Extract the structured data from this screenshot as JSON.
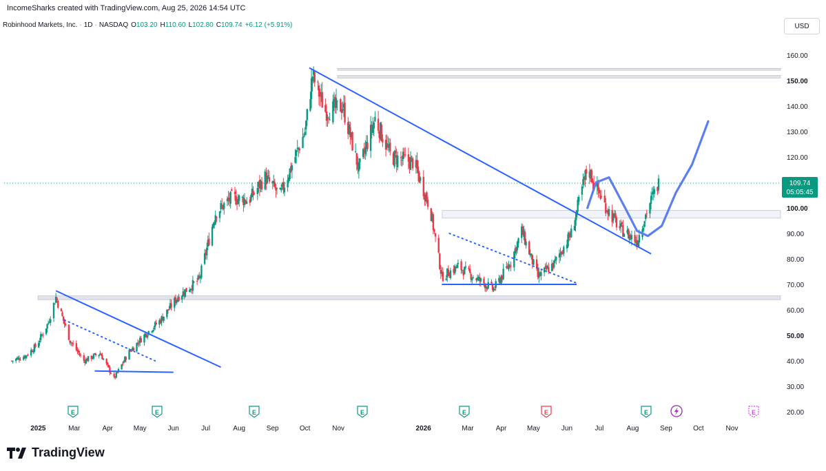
{
  "header": {
    "attribution": "IncomeSharks created with TradingView.com, Aug 25, 2026 14:54 UTC"
  },
  "symbol": {
    "name": "Robinhood Markets, Inc.",
    "interval": "1D",
    "exchange": "NASDAQ",
    "open_label": "O",
    "open": "103.20",
    "high_label": "H",
    "high": "110.60",
    "low_label": "L",
    "low": "102.80",
    "close_label": "C",
    "close": "109.74",
    "change": "+6.12 (+5.91%)"
  },
  "currency_button": "USD",
  "price_tag": {
    "price": "109.74",
    "countdown": "05:05:45"
  },
  "brand": "TradingView",
  "colors": {
    "up": "#089981",
    "down": "#f23645",
    "trendline": "#2962ff",
    "zone": "#d1d4dc",
    "projection": "#5b7ef0"
  },
  "chart_data": {
    "type": "candlestick",
    "y_axis": {
      "ticks": [
        "160.00",
        "150.00",
        "140.00",
        "130.00",
        "120.00",
        "110.00",
        "100.00",
        "90.00",
        "80.00",
        "70.00",
        "60.00",
        "50.00",
        "40.00",
        "30.00",
        "20.00"
      ],
      "range": [
        15,
        165
      ]
    },
    "x_axis": {
      "ticks": [
        "2025",
        "Mar",
        "Apr",
        "May",
        "Jun",
        "Jul",
        "Aug",
        "Sep",
        "Oct",
        "Nov",
        "2026",
        "Mar",
        "Apr",
        "May",
        "Jun",
        "Jul",
        "Aug",
        "Sep",
        "Oct",
        "Nov"
      ]
    },
    "approx_close_path": [
      {
        "date": "2025-01-02",
        "close": 40
      },
      {
        "date": "2025-01-15",
        "close": 42
      },
      {
        "date": "2025-01-25",
        "close": 46
      },
      {
        "date": "2025-02-05",
        "close": 55
      },
      {
        "date": "2025-02-12",
        "close": 65
      },
      {
        "date": "2025-02-25",
        "close": 48
      },
      {
        "date": "2025-03-10",
        "close": 40
      },
      {
        "date": "2025-03-25",
        "close": 43
      },
      {
        "date": "2025-04-07",
        "close": 33
      },
      {
        "date": "2025-04-20",
        "close": 43
      },
      {
        "date": "2025-05-05",
        "close": 50
      },
      {
        "date": "2025-05-20",
        "close": 56
      },
      {
        "date": "2025-06-05",
        "close": 65
      },
      {
        "date": "2025-06-25",
        "close": 72
      },
      {
        "date": "2025-07-10",
        "close": 98
      },
      {
        "date": "2025-07-25",
        "close": 104
      },
      {
        "date": "2025-08-10",
        "close": 103
      },
      {
        "date": "2025-08-25",
        "close": 112
      },
      {
        "date": "2025-09-08",
        "close": 105
      },
      {
        "date": "2025-09-20",
        "close": 118
      },
      {
        "date": "2025-10-01",
        "close": 130
      },
      {
        "date": "2025-10-08",
        "close": 152
      },
      {
        "date": "2025-10-20",
        "close": 138
      },
      {
        "date": "2025-11-05",
        "close": 140
      },
      {
        "date": "2025-11-20",
        "close": 115
      },
      {
        "date": "2025-12-05",
        "close": 135
      },
      {
        "date": "2025-12-20",
        "close": 120
      },
      {
        "date": "2026-01-10",
        "close": 118
      },
      {
        "date": "2026-01-25",
        "close": 100
      },
      {
        "date": "2026-02-05",
        "close": 73
      },
      {
        "date": "2026-02-20",
        "close": 77
      },
      {
        "date": "2026-03-10",
        "close": 72
      },
      {
        "date": "2026-03-25",
        "close": 68
      },
      {
        "date": "2026-04-10",
        "close": 79
      },
      {
        "date": "2026-04-20",
        "close": 91
      },
      {
        "date": "2026-05-05",
        "close": 73
      },
      {
        "date": "2026-05-20",
        "close": 78
      },
      {
        "date": "2026-06-05",
        "close": 90
      },
      {
        "date": "2026-06-20",
        "close": 116
      },
      {
        "date": "2026-07-05",
        "close": 102
      },
      {
        "date": "2026-07-20",
        "close": 92
      },
      {
        "date": "2026-08-05",
        "close": 87
      },
      {
        "date": "2026-08-15",
        "close": 100
      },
      {
        "date": "2026-08-25",
        "close": 109.74
      }
    ],
    "support_resistance_zones": [
      {
        "from": 64,
        "to": 65.5
      },
      {
        "from": 96,
        "to": 99
      },
      {
        "from": 151,
        "to": 152
      },
      {
        "from": 154,
        "to": 154.8
      }
    ],
    "trendlines": [
      {
        "from": {
          "date": "2025-02-12",
          "price": 67.5
        },
        "to": {
          "date": "2025-07-15",
          "price": 37.5
        }
      },
      {
        "from": {
          "date": "2025-10-05",
          "price": 155
        },
        "to": {
          "date": "2026-08-18",
          "price": 82
        }
      },
      {
        "from": {
          "date": "2025-03-20",
          "price": 36
        },
        "to": {
          "date": "2025-06-01",
          "price": 35.5
        }
      },
      {
        "from": {
          "date": "2026-02-05",
          "price": 70
        },
        "to": {
          "date": "2026-06-10",
          "price": 70
        }
      }
    ],
    "earnings_markers": [
      "E",
      "E",
      "E",
      "E",
      "E",
      "E",
      "E",
      "E",
      "E"
    ]
  }
}
